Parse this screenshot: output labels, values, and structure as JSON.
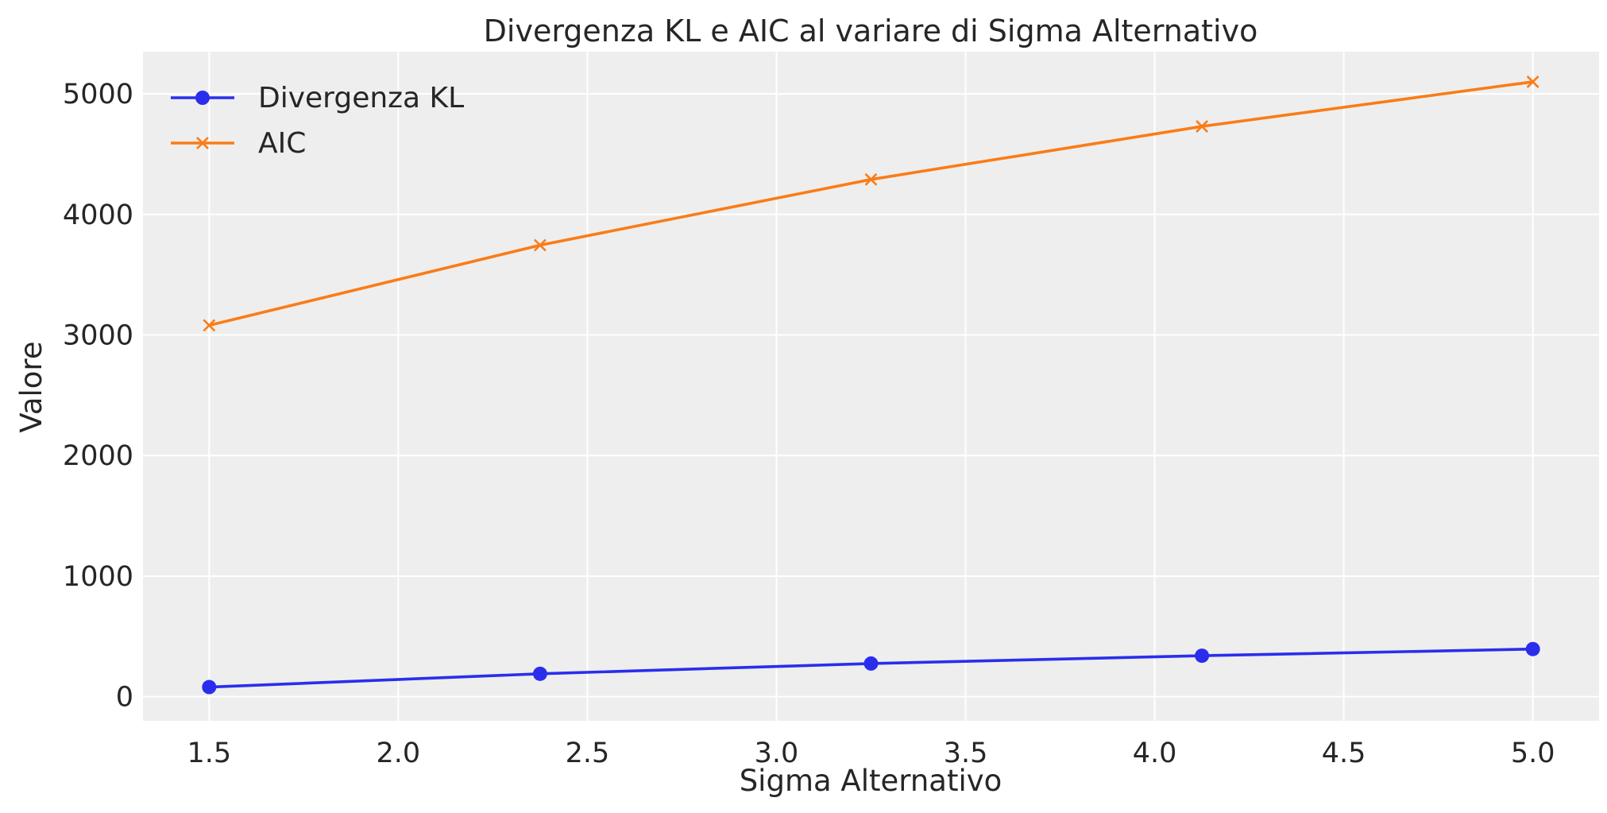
{
  "chart_data": {
    "type": "line",
    "title": "Divergenza KL e AIC al variare di Sigma Alternativo",
    "xlabel": "Sigma Alternativo",
    "ylabel": "Valore",
    "x": [
      1.5,
      2.375,
      3.25,
      4.125,
      5.0
    ],
    "xlim": [
      1.325,
      5.175
    ],
    "ylim": [
      -200,
      5350
    ],
    "xticks": [
      1.5,
      2.0,
      2.5,
      3.0,
      3.5,
      4.0,
      4.5,
      5.0
    ],
    "xtick_labels": [
      "1.5",
      "2.0",
      "2.5",
      "3.0",
      "3.5",
      "4.0",
      "4.5",
      "5.0"
    ],
    "yticks": [
      0,
      1000,
      2000,
      3000,
      4000,
      5000
    ],
    "ytick_labels": [
      "0",
      "1000",
      "2000",
      "3000",
      "4000",
      "5000"
    ],
    "grid": true,
    "legend_position": "upper-left",
    "series": [
      {
        "name": "Divergenza KL",
        "values": [
          80,
          190,
          275,
          340,
          395
        ],
        "color": "#2a2eec",
        "marker": "circle"
      },
      {
        "name": "AIC",
        "values": [
          3080,
          3745,
          4290,
          4730,
          5100
        ],
        "color": "#fa7c17",
        "marker": "x"
      }
    ],
    "plot_background": "#eeeeee"
  }
}
